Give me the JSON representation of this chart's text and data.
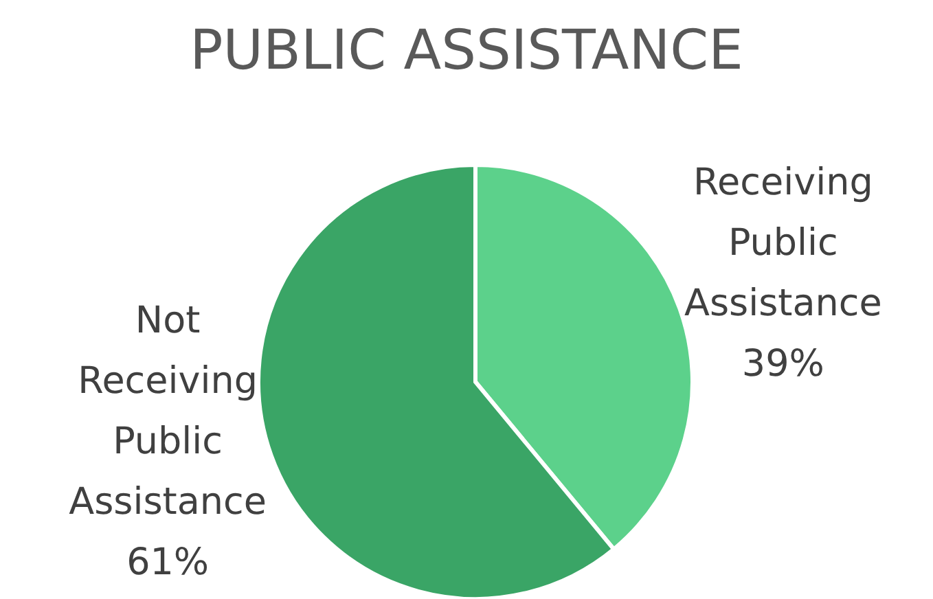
{
  "chart_data": {
    "type": "pie",
    "title": "PUBLIC ASSISTANCE",
    "categories": [
      "Receiving Public Assistance",
      "Not Receiving Public Assistance"
    ],
    "values": [
      39,
      61
    ],
    "value_labels": [
      "39%",
      "61%"
    ],
    "colors": [
      "#5cd18b",
      "#3aa566"
    ]
  }
}
